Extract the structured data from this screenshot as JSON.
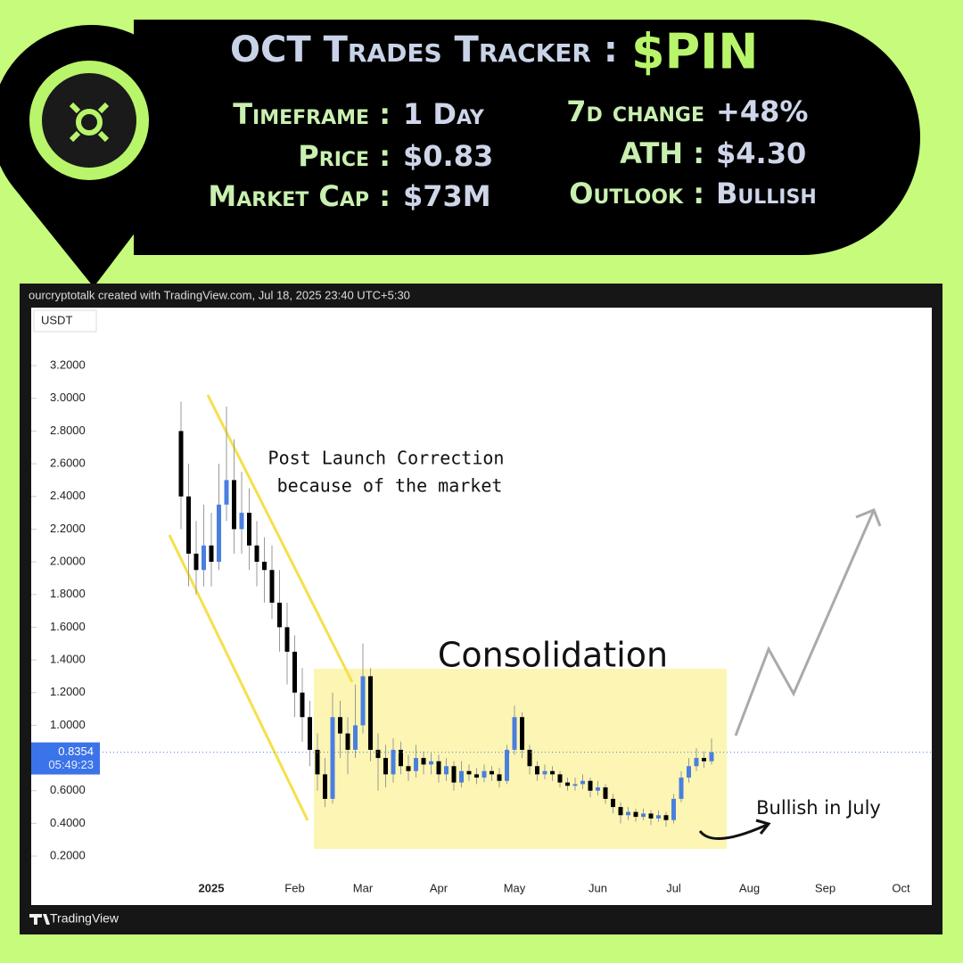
{
  "header": {
    "title": "OCT Trades Tracker :",
    "ticker": "$PIN",
    "stats_left": [
      {
        "label": "Timeframe :",
        "value": "1 Day"
      },
      {
        "label": "Price :",
        "value": "$0.83"
      },
      {
        "label": "Market Cap :",
        "value": "$73M"
      }
    ],
    "stats_right": [
      {
        "label": "7d change",
        "value": "+48%"
      },
      {
        "label": "ATH :",
        "value": "$4.30"
      },
      {
        "label": "Outlook :",
        "value": "Bullish"
      }
    ]
  },
  "chart_data": {
    "type": "candlestick",
    "watermark": "ourcryptotalk created with TradingView.com, Jul 18, 2025 23:40 UTC+5:30",
    "currency": "USDT",
    "brand": "TradingView",
    "up_color": "#4a7fe0",
    "down_color": "#000000",
    "wick_color": "#9a9a9a",
    "last_price": 0.8354,
    "countdown": "05:49:23",
    "ylim": [
      0.064,
      3.555
    ],
    "yticks": [
      {
        "value": 0.2,
        "label": "0.2000"
      },
      {
        "value": 0.4,
        "label": "0.4000"
      },
      {
        "value": 0.6,
        "label": "0.6000"
      },
      {
        "value": 1.0,
        "label": "1.0000"
      },
      {
        "value": 1.2,
        "label": "1.2000"
      },
      {
        "value": 1.4,
        "label": "1.4000"
      },
      {
        "value": 1.6,
        "label": "1.6000"
      },
      {
        "value": 1.8,
        "label": "1.8000"
      },
      {
        "value": 2.0,
        "label": "2.0000"
      },
      {
        "value": 2.2,
        "label": "2.2000"
      },
      {
        "value": 2.4,
        "label": "2.4000"
      },
      {
        "value": 2.6,
        "label": "2.6000"
      },
      {
        "value": 2.8,
        "label": "2.8000"
      },
      {
        "value": 3.0,
        "label": "3.0000"
      },
      {
        "value": 3.2,
        "label": "3.2000"
      }
    ],
    "categories": [
      null,
      null,
      null,
      null,
      "2025",
      null,
      null,
      null,
      null,
      null,
      null,
      null,
      null,
      null,
      null,
      "Feb",
      null,
      null,
      null,
      null,
      null,
      null,
      null,
      null,
      "Mar",
      null,
      null,
      null,
      null,
      null,
      null,
      null,
      null,
      null,
      "Apr",
      null,
      null,
      null,
      null,
      null,
      null,
      null,
      null,
      null,
      "May",
      null,
      null,
      null,
      null,
      null,
      null,
      null,
      null,
      null,
      null,
      "Jun",
      null,
      null,
      null,
      null,
      null,
      null,
      null,
      null,
      null,
      "Jul",
      null,
      null,
      null,
      null,
      null,
      null,
      null,
      null,
      null,
      "Aug",
      null,
      null,
      null,
      null,
      null,
      null,
      null,
      null,
      null,
      "Sep",
      null,
      null,
      null,
      null,
      null,
      null,
      null,
      null,
      null,
      "Oct"
    ],
    "open": [
      2.8,
      2.4,
      2.05,
      1.95,
      2.1,
      2.0,
      2.35,
      2.5,
      2.2,
      2.3,
      2.1,
      2.0,
      1.95,
      1.75,
      1.6,
      1.45,
      1.2,
      1.05,
      0.85,
      0.7,
      0.55,
      1.05,
      0.95,
      0.85,
      1.0,
      1.3,
      0.85,
      0.8,
      0.7,
      0.85,
      0.75,
      0.72,
      0.8,
      0.76,
      0.78,
      0.7,
      0.75,
      0.65,
      0.72,
      0.7,
      0.68,
      0.72,
      0.7,
      0.66,
      0.85,
      1.05,
      0.85,
      0.75,
      0.7,
      0.72,
      0.7,
      0.65,
      0.63,
      0.64,
      0.66,
      0.6,
      0.62,
      0.55,
      0.5,
      0.45,
      0.47,
      0.44,
      0.46,
      0.43,
      0.45,
      0.42,
      0.55,
      0.68,
      0.75,
      0.8,
      0.78,
      null,
      null,
      null,
      null,
      null,
      null,
      null,
      null,
      null,
      null,
      null,
      null,
      null,
      null,
      null,
      null,
      null,
      null,
      null,
      null,
      null,
      null,
      null,
      null,
      null
    ],
    "high": [
      2.98,
      2.6,
      2.25,
      2.35,
      2.3,
      2.6,
      2.95,
      2.75,
      2.55,
      2.45,
      2.25,
      2.15,
      2.1,
      1.95,
      1.75,
      1.55,
      1.35,
      1.15,
      0.95,
      0.8,
      1.2,
      1.15,
      1.05,
      1.25,
      1.5,
      1.35,
      0.95,
      0.88,
      0.92,
      0.9,
      0.82,
      0.88,
      0.84,
      0.83,
      0.82,
      0.8,
      0.78,
      0.78,
      0.76,
      0.74,
      0.76,
      0.75,
      0.74,
      0.88,
      1.12,
      1.08,
      0.88,
      0.78,
      0.76,
      0.75,
      0.72,
      0.68,
      0.68,
      0.7,
      0.68,
      0.66,
      0.64,
      0.58,
      0.53,
      0.5,
      0.49,
      0.49,
      0.48,
      0.48,
      0.47,
      0.58,
      0.72,
      0.8,
      0.86,
      0.84,
      0.92,
      null,
      null,
      null,
      null,
      null,
      null,
      null,
      null,
      null,
      null,
      null,
      null,
      null,
      null,
      null,
      null,
      null,
      null,
      null,
      null,
      null,
      null,
      null,
      null,
      null
    ],
    "low": [
      2.2,
      1.85,
      1.8,
      1.85,
      1.85,
      1.95,
      2.25,
      2.05,
      2.05,
      1.95,
      1.85,
      1.75,
      1.65,
      1.45,
      1.25,
      1.05,
      0.9,
      0.75,
      0.6,
      0.5,
      0.52,
      0.8,
      0.7,
      0.8,
      0.95,
      0.78,
      0.6,
      0.62,
      0.65,
      0.7,
      0.66,
      0.68,
      0.7,
      0.7,
      0.65,
      0.66,
      0.6,
      0.62,
      0.66,
      0.64,
      0.65,
      0.66,
      0.62,
      0.64,
      0.82,
      0.8,
      0.7,
      0.66,
      0.67,
      0.66,
      0.62,
      0.6,
      0.6,
      0.61,
      0.56,
      0.57,
      0.52,
      0.46,
      0.4,
      0.42,
      0.41,
      0.42,
      0.39,
      0.41,
      0.38,
      0.4,
      0.53,
      0.65,
      0.72,
      0.74,
      0.76,
      null,
      null,
      null,
      null,
      null,
      null,
      null,
      null,
      null,
      null,
      null,
      null,
      null,
      null,
      null,
      null,
      null,
      null,
      null,
      null,
      null,
      null,
      null,
      null,
      null
    ],
    "close": [
      2.4,
      2.05,
      1.95,
      2.1,
      2.0,
      2.35,
      2.5,
      2.2,
      2.3,
      2.1,
      2.0,
      1.95,
      1.75,
      1.6,
      1.45,
      1.2,
      1.05,
      0.85,
      0.7,
      0.55,
      1.05,
      0.95,
      0.85,
      1.0,
      1.3,
      0.85,
      0.8,
      0.7,
      0.85,
      0.75,
      0.72,
      0.8,
      0.76,
      0.78,
      0.7,
      0.75,
      0.65,
      0.72,
      0.7,
      0.68,
      0.72,
      0.7,
      0.66,
      0.85,
      1.05,
      0.85,
      0.75,
      0.7,
      0.72,
      0.7,
      0.65,
      0.63,
      0.64,
      0.66,
      0.6,
      0.62,
      0.55,
      0.5,
      0.45,
      0.47,
      0.44,
      0.46,
      0.43,
      0.45,
      0.42,
      0.55,
      0.68,
      0.75,
      0.8,
      0.78,
      0.8354,
      null,
      null,
      null,
      null,
      null,
      null,
      null,
      null,
      null,
      null,
      null,
      null,
      null,
      null,
      null,
      null,
      null,
      null,
      null,
      null,
      null,
      null,
      null,
      null,
      null
    ],
    "annotations": [
      "Post Launch Correction",
      "because of the market",
      "Consolidation",
      "Bullish in July"
    ]
  }
}
